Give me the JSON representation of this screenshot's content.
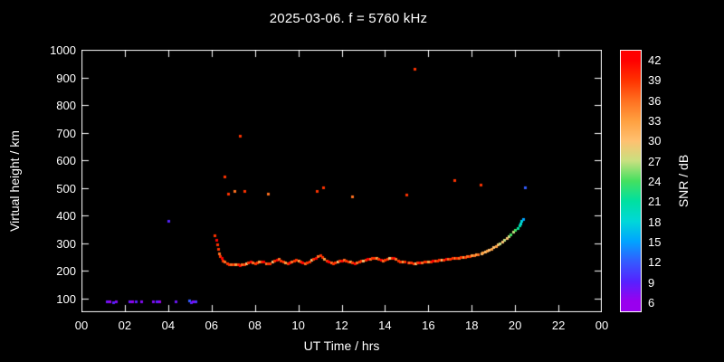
{
  "chart_data": {
    "type": "scatter",
    "title": "2025-03-06. f = 5760 kHz",
    "xlabel": "UT Time / hrs",
    "ylabel": "Virtual height / km",
    "xlim": [
      0,
      24
    ],
    "ylim": [
      50,
      1000
    ],
    "grid": false,
    "background": "#000000",
    "foreground": "#ffffff",
    "x_ticks": [
      {
        "v": 0,
        "label": "00"
      },
      {
        "v": 2,
        "label": "02"
      },
      {
        "v": 4,
        "label": "04"
      },
      {
        "v": 6,
        "label": "06"
      },
      {
        "v": 8,
        "label": "08"
      },
      {
        "v": 10,
        "label": "10"
      },
      {
        "v": 12,
        "label": "12"
      },
      {
        "v": 14,
        "label": "14"
      },
      {
        "v": 16,
        "label": "16"
      },
      {
        "v": 18,
        "label": "18"
      },
      {
        "v": 20,
        "label": "20"
      },
      {
        "v": 22,
        "label": "22"
      },
      {
        "v": 24,
        "label": "00"
      }
    ],
    "y_ticks": [
      {
        "v": 100,
        "label": "100"
      },
      {
        "v": 200,
        "label": "200"
      },
      {
        "v": 300,
        "label": "300"
      },
      {
        "v": 400,
        "label": "400"
      },
      {
        "v": 500,
        "label": "500"
      },
      {
        "v": 600,
        "label": "600"
      },
      {
        "v": 700,
        "label": "700"
      },
      {
        "v": 800,
        "label": "800"
      },
      {
        "v": 900,
        "label": "900"
      },
      {
        "v": 1000,
        "label": "1000"
      }
    ],
    "colorbar": {
      "label": "SNR / dB",
      "position": "right",
      "range": [
        4.5,
        43.5
      ],
      "ticks": [
        42,
        39,
        36,
        33,
        30,
        27,
        24,
        21,
        18,
        15,
        12,
        9,
        6
      ],
      "stops": [
        {
          "v": 6,
          "color": "#9900ee"
        },
        {
          "v": 9,
          "color": "#5522ff"
        },
        {
          "v": 12,
          "color": "#335cff"
        },
        {
          "v": 15,
          "color": "#00a4ff"
        },
        {
          "v": 18,
          "color": "#00d8d8"
        },
        {
          "v": 21,
          "color": "#00e0a0"
        },
        {
          "v": 24,
          "color": "#44e060"
        },
        {
          "v": 27,
          "color": "#c8e080"
        },
        {
          "v": 30,
          "color": "#ffc070"
        },
        {
          "v": 33,
          "color": "#ffa040"
        },
        {
          "v": 36,
          "color": "#ff7020"
        },
        {
          "v": 39,
          "color": "#ff3300"
        },
        {
          "v": 42,
          "color": "#ff0000"
        }
      ]
    },
    "points_format": [
      "ut_hours",
      "virtual_height_km",
      "snr_db"
    ],
    "points": [
      [
        1.15,
        88,
        8
      ],
      [
        1.3,
        90,
        6
      ],
      [
        1.45,
        87,
        9
      ],
      [
        1.6,
        90,
        7
      ],
      [
        2.2,
        88,
        8
      ],
      [
        2.35,
        90,
        6
      ],
      [
        2.5,
        88,
        9
      ],
      [
        2.75,
        90,
        7
      ],
      [
        3.3,
        88,
        7
      ],
      [
        3.45,
        90,
        9
      ],
      [
        3.6,
        88,
        6
      ],
      [
        4.0,
        382,
        9
      ],
      [
        4.35,
        88,
        8
      ],
      [
        4.95,
        92,
        12
      ],
      [
        5.05,
        86,
        9
      ],
      [
        5.15,
        90,
        7
      ],
      [
        5.25,
        88,
        10
      ],
      [
        6.6,
        540,
        39
      ],
      [
        6.75,
        478,
        39
      ],
      [
        7.05,
        490,
        36
      ],
      [
        7.3,
        690,
        39
      ],
      [
        7.5,
        488,
        39
      ],
      [
        8.6,
        478,
        36
      ],
      [
        10.85,
        488,
        39
      ],
      [
        11.15,
        503,
        39
      ],
      [
        12.5,
        470,
        36
      ],
      [
        15.0,
        475,
        39
      ],
      [
        15.35,
        932,
        39
      ],
      [
        17.2,
        527,
        39
      ],
      [
        18.4,
        513,
        39
      ],
      [
        20.45,
        502,
        12
      ],
      [
        6.15,
        330,
        39
      ],
      [
        6.2,
        312,
        42
      ],
      [
        6.25,
        296,
        39
      ],
      [
        6.3,
        278,
        39
      ],
      [
        6.35,
        264,
        36
      ],
      [
        6.4,
        253,
        39
      ],
      [
        6.45,
        245,
        42
      ],
      [
        6.5,
        238,
        39
      ],
      [
        6.6,
        232,
        36
      ],
      [
        6.7,
        228,
        39
      ],
      [
        6.8,
        225,
        39
      ],
      [
        6.9,
        222,
        36
      ],
      [
        7.0,
        222,
        39
      ],
      [
        7.1,
        224,
        33
      ],
      [
        7.2,
        222,
        39
      ],
      [
        7.3,
        220,
        42
      ],
      [
        7.4,
        222,
        36
      ],
      [
        7.5,
        225,
        39
      ],
      [
        7.6,
        228,
        30
      ],
      [
        7.7,
        230,
        39
      ],
      [
        7.8,
        232,
        42
      ],
      [
        7.9,
        230,
        36
      ],
      [
        8.0,
        228,
        39
      ],
      [
        8.1,
        230,
        39
      ],
      [
        8.2,
        233,
        33
      ],
      [
        8.3,
        235,
        39
      ],
      [
        8.4,
        232,
        42
      ],
      [
        8.5,
        228,
        36
      ],
      [
        8.6,
        226,
        39
      ],
      [
        8.7,
        228,
        39
      ],
      [
        8.8,
        232,
        30
      ],
      [
        8.9,
        236,
        39
      ],
      [
        9.0,
        240,
        42
      ],
      [
        9.1,
        242,
        36
      ],
      [
        9.2,
        238,
        39
      ],
      [
        9.3,
        234,
        39
      ],
      [
        9.4,
        230,
        33
      ],
      [
        9.5,
        228,
        39
      ],
      [
        9.6,
        230,
        42
      ],
      [
        9.7,
        234,
        36
      ],
      [
        9.8,
        238,
        39
      ],
      [
        9.9,
        240,
        39
      ],
      [
        10.0,
        238,
        33
      ],
      [
        10.1,
        234,
        39
      ],
      [
        10.2,
        230,
        42
      ],
      [
        10.3,
        228,
        36
      ],
      [
        10.4,
        230,
        39
      ],
      [
        10.5,
        235,
        39
      ],
      [
        10.6,
        240,
        30
      ],
      [
        10.7,
        244,
        39
      ],
      [
        10.8,
        248,
        42
      ],
      [
        10.9,
        252,
        36
      ],
      [
        11.0,
        255,
        39
      ],
      [
        11.1,
        250,
        39
      ],
      [
        11.2,
        244,
        33
      ],
      [
        11.3,
        238,
        39
      ],
      [
        11.4,
        234,
        42
      ],
      [
        11.5,
        230,
        36
      ],
      [
        11.6,
        228,
        39
      ],
      [
        11.7,
        230,
        39
      ],
      [
        11.8,
        233,
        30
      ],
      [
        11.9,
        236,
        39
      ],
      [
        12.0,
        238,
        42
      ],
      [
        12.1,
        240,
        36
      ],
      [
        12.2,
        238,
        39
      ],
      [
        12.3,
        235,
        39
      ],
      [
        12.4,
        232,
        33
      ],
      [
        12.5,
        230,
        39
      ],
      [
        12.6,
        228,
        42
      ],
      [
        12.7,
        230,
        36
      ],
      [
        12.8,
        233,
        39
      ],
      [
        12.9,
        236,
        39
      ],
      [
        13.0,
        238,
        30
      ],
      [
        13.1,
        240,
        39
      ],
      [
        13.2,
        242,
        42
      ],
      [
        13.3,
        244,
        36
      ],
      [
        13.4,
        246,
        39
      ],
      [
        13.5,
        248,
        39
      ],
      [
        13.6,
        246,
        33
      ],
      [
        13.7,
        243,
        39
      ],
      [
        13.8,
        240,
        42
      ],
      [
        13.9,
        238,
        36
      ],
      [
        14.0,
        240,
        39
      ],
      [
        14.1,
        243,
        39
      ],
      [
        14.2,
        246,
        30
      ],
      [
        14.3,
        248,
        39
      ],
      [
        14.4,
        246,
        42
      ],
      [
        14.5,
        242,
        36
      ],
      [
        14.6,
        238,
        39
      ],
      [
        14.7,
        235,
        39
      ],
      [
        14.8,
        233,
        33
      ],
      [
        14.9,
        232,
        39
      ],
      [
        15.05,
        230,
        42
      ],
      [
        15.1,
        230,
        36
      ],
      [
        15.2,
        229,
        39
      ],
      [
        15.3,
        228,
        39
      ],
      [
        15.4,
        228,
        30
      ],
      [
        15.5,
        229,
        39
      ],
      [
        15.6,
        230,
        42
      ],
      [
        15.7,
        231,
        36
      ],
      [
        15.8,
        232,
        39
      ],
      [
        15.9,
        233,
        39
      ],
      [
        16.0,
        234,
        33
      ],
      [
        16.1,
        235,
        39
      ],
      [
        16.2,
        236,
        42
      ],
      [
        16.3,
        237,
        36
      ],
      [
        16.4,
        238,
        39
      ],
      [
        16.5,
        239,
        39
      ],
      [
        16.6,
        240,
        30
      ],
      [
        16.7,
        241,
        39
      ],
      [
        16.8,
        242,
        42
      ],
      [
        16.9,
        243,
        36
      ],
      [
        17.0,
        244,
        39
      ],
      [
        17.1,
        245,
        39
      ],
      [
        17.25,
        246,
        33
      ],
      [
        17.3,
        247,
        39
      ],
      [
        17.4,
        248,
        36
      ],
      [
        17.5,
        249,
        39
      ],
      [
        17.6,
        250,
        33
      ],
      [
        17.7,
        251,
        39
      ],
      [
        17.8,
        252,
        36
      ],
      [
        17.9,
        253,
        39
      ],
      [
        18.0,
        255,
        33
      ],
      [
        18.1,
        257,
        36
      ],
      [
        18.2,
        259,
        33
      ],
      [
        18.3,
        261,
        36
      ],
      [
        18.45,
        263,
        30
      ],
      [
        18.5,
        266,
        33
      ],
      [
        18.6,
        269,
        30
      ],
      [
        18.7,
        272,
        33
      ],
      [
        18.8,
        276,
        30
      ],
      [
        18.9,
        280,
        33
      ],
      [
        19.0,
        285,
        30
      ],
      [
        19.1,
        290,
        33
      ],
      [
        19.2,
        295,
        30
      ],
      [
        19.3,
        300,
        27
      ],
      [
        19.4,
        306,
        30
      ],
      [
        19.5,
        312,
        27
      ],
      [
        19.6,
        318,
        30
      ],
      [
        19.7,
        325,
        27
      ],
      [
        19.8,
        332,
        24
      ],
      [
        19.9,
        340,
        27
      ],
      [
        20.0,
        348,
        24
      ],
      [
        20.1,
        356,
        21
      ],
      [
        20.2,
        365,
        21
      ],
      [
        20.25,
        372,
        18
      ],
      [
        20.3,
        380,
        18
      ],
      [
        20.35,
        387,
        15
      ]
    ]
  }
}
